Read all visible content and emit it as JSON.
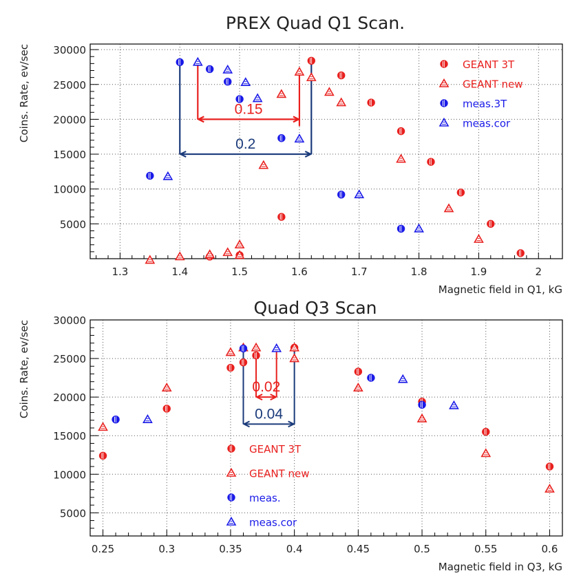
{
  "chart_data": [
    {
      "type": "scatter",
      "title": "PREX Quad Q1 Scan.",
      "xlabel": "Magnetic field in Q1, kG",
      "ylabel": "Coins. Rate, ev/sec",
      "xlim": [
        1.25,
        2.04
      ],
      "ylim": [
        0,
        30800
      ],
      "xticks": [
        "1.3",
        "1.4",
        "1.5",
        "1.6",
        "1.7",
        "1.8",
        "1.9",
        "2"
      ],
      "yticks": [
        "5000",
        "10000",
        "15000",
        "20000",
        "25000",
        "30000"
      ],
      "grid": true,
      "legend_position": "top-right",
      "series": [
        {
          "name": "GEANT 3T",
          "color": "#e8201e",
          "marker": "circle",
          "x": [
            1.45,
            1.5,
            1.57,
            1.62,
            1.67,
            1.72,
            1.77,
            1.82,
            1.87,
            1.92,
            1.97
          ],
          "y": [
            300,
            500,
            6000,
            28400,
            26300,
            22400,
            18300,
            13900,
            9500,
            5000,
            800
          ]
        },
        {
          "name": "GEANT new",
          "color": "#e8201e",
          "marker": "triangle",
          "x": [
            1.35,
            1.4,
            1.45,
            1.48,
            1.5,
            1.5,
            1.54,
            1.57,
            1.6,
            1.62,
            1.65,
            1.67,
            1.77,
            1.85,
            1.9
          ],
          "y": [
            -200,
            300,
            600,
            900,
            500,
            2000,
            13400,
            23600,
            26800,
            26000,
            23900,
            22400,
            14300,
            7200,
            2800
          ]
        },
        {
          "name": "meas.3T",
          "color": "#1a1ae8",
          "marker": "circle",
          "x": [
            1.35,
            1.4,
            1.45,
            1.48,
            1.5,
            1.57,
            1.67,
            1.77
          ],
          "y": [
            11900,
            28200,
            27200,
            25400,
            22900,
            17300,
            9200,
            4300
          ]
        },
        {
          "name": "meas.cor",
          "color": "#1a1ae8",
          "marker": "triangle",
          "x": [
            1.38,
            1.43,
            1.48,
            1.51,
            1.53,
            1.6,
            1.7,
            1.8
          ],
          "y": [
            11800,
            28200,
            27100,
            25300,
            23000,
            17200,
            9200,
            4300
          ]
        }
      ],
      "annotations": [
        {
          "text": "0.15",
          "color": "#e8201e",
          "x1": 1.43,
          "x2": 1.6,
          "y": 20000,
          "y_top1": 28000,
          "y_top2": 26800
        },
        {
          "text": "0.2",
          "color": "#1a3a7a",
          "x1": 1.4,
          "x2": 1.62,
          "y": 15000,
          "y_top1": 28200,
          "y_top2": 28400
        }
      ]
    },
    {
      "type": "scatter",
      "title": "Quad Q3 Scan",
      "xlabel": "Magnetic field in Q3, kG",
      "ylabel": "Coins. Rate, ev/sec",
      "xlim": [
        0.24,
        0.61
      ],
      "ylim": [
        2000,
        30000
      ],
      "xticks": [
        "0.25",
        "0.3",
        "0.35",
        "0.4",
        "0.45",
        "0.5",
        "0.55",
        "0.6"
      ],
      "yticks": [
        "5000",
        "10000",
        "15000",
        "20000",
        "25000",
        "30000"
      ],
      "grid": true,
      "legend_position": "bottom-center",
      "series": [
        {
          "name": "GEANT 3T",
          "color": "#e8201e",
          "marker": "circle",
          "x": [
            0.25,
            0.3,
            0.35,
            0.36,
            0.37,
            0.4,
            0.45,
            0.5,
            0.55,
            0.6
          ],
          "y": [
            12400,
            18500,
            23800,
            24500,
            25400,
            26400,
            23300,
            19400,
            15500,
            11000
          ]
        },
        {
          "name": "GEANT new",
          "color": "#e8201e",
          "marker": "triangle",
          "x": [
            0.25,
            0.3,
            0.35,
            0.36,
            0.37,
            0.4,
            0.4,
            0.45,
            0.5,
            0.55,
            0.6
          ],
          "y": [
            16100,
            21200,
            25800,
            26400,
            26400,
            26400,
            25000,
            21200,
            17200,
            12700,
            8100
          ]
        },
        {
          "name": "meas.",
          "color": "#1a1ae8",
          "marker": "circle",
          "x": [
            0.26,
            0.36,
            0.46,
            0.5
          ],
          "y": [
            17100,
            26300,
            22500,
            19000
          ]
        },
        {
          "name": "meas.cor",
          "color": "#1a1ae8",
          "marker": "triangle",
          "x": [
            0.285,
            0.386,
            0.485,
            0.525
          ],
          "y": [
            17100,
            26300,
            22300,
            18900
          ]
        }
      ],
      "annotations": [
        {
          "text": "0.02",
          "color": "#e8201e",
          "x1": 0.37,
          "x2": 0.386,
          "y": 20000,
          "y_top1": 25400,
          "y_top2": 26300
        },
        {
          "text": "0.04",
          "color": "#1a3a7a",
          "x1": 0.36,
          "x2": 0.4,
          "y": 16500,
          "y_top1": 26300,
          "y_top2": 26400
        }
      ]
    }
  ]
}
